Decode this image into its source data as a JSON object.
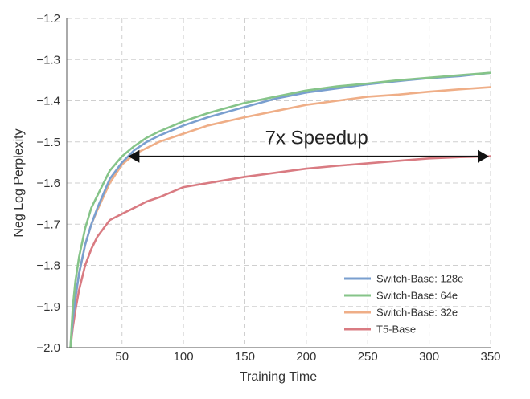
{
  "chart_data": {
    "type": "line",
    "title": "",
    "xlabel": "Training Time",
    "ylabel": "Neg Log Perplexity",
    "xlim": [
      5,
      350
    ],
    "ylim": [
      -2.0,
      -1.2
    ],
    "xticks": [
      50,
      100,
      150,
      200,
      250,
      300,
      350
    ],
    "yticks": [
      -2.0,
      -1.9,
      -1.8,
      -1.7,
      -1.6,
      -1.5,
      -1.4,
      -1.3,
      -1.2
    ],
    "ytick_labels": [
      "−2.0",
      "−1.9",
      "−1.8",
      "−1.7",
      "−1.6",
      "−1.5",
      "−1.4",
      "−1.3",
      "−1.2"
    ],
    "grid": true,
    "legend_position": "bottom-right",
    "series": [
      {
        "name": "Switch-Base: 128e",
        "color": "#7a9fcf",
        "x": [
          8,
          10,
          12,
          15,
          20,
          25,
          30,
          40,
          50,
          60,
          70,
          80,
          100,
          120,
          150,
          175,
          200,
          225,
          250,
          275,
          300,
          325,
          350
        ],
        "y": [
          -2.0,
          -1.93,
          -1.88,
          -1.82,
          -1.75,
          -1.7,
          -1.66,
          -1.59,
          -1.55,
          -1.52,
          -1.5,
          -1.485,
          -1.46,
          -1.44,
          -1.415,
          -1.395,
          -1.38,
          -1.37,
          -1.36,
          -1.352,
          -1.345,
          -1.34,
          -1.332
        ]
      },
      {
        "name": "Switch-Base: 64e",
        "color": "#86c489",
        "x": [
          8,
          10,
          12,
          15,
          20,
          25,
          30,
          40,
          50,
          60,
          70,
          80,
          100,
          120,
          150,
          175,
          200,
          225,
          250,
          275,
          300,
          325,
          350
        ],
        "y": [
          -2.0,
          -1.9,
          -1.84,
          -1.78,
          -1.71,
          -1.66,
          -1.63,
          -1.57,
          -1.535,
          -1.51,
          -1.49,
          -1.475,
          -1.45,
          -1.43,
          -1.405,
          -1.39,
          -1.375,
          -1.365,
          -1.358,
          -1.35,
          -1.344,
          -1.338,
          -1.332
        ]
      },
      {
        "name": "Switch-Base: 32e",
        "color": "#efae87",
        "x": [
          8,
          10,
          12,
          15,
          20,
          25,
          30,
          40,
          50,
          60,
          70,
          80,
          100,
          120,
          150,
          175,
          200,
          225,
          250,
          275,
          300,
          325,
          350
        ],
        "y": [
          -2.0,
          -1.93,
          -1.88,
          -1.82,
          -1.75,
          -1.7,
          -1.665,
          -1.6,
          -1.555,
          -1.53,
          -1.515,
          -1.5,
          -1.48,
          -1.46,
          -1.44,
          -1.425,
          -1.41,
          -1.4,
          -1.39,
          -1.385,
          -1.378,
          -1.372,
          -1.367
        ]
      },
      {
        "name": "T5-Base",
        "color": "#d97b82",
        "x": [
          8,
          10,
          12,
          15,
          20,
          25,
          30,
          40,
          50,
          60,
          70,
          80,
          100,
          120,
          150,
          175,
          200,
          225,
          250,
          275,
          300,
          325,
          350
        ],
        "y": [
          -2.0,
          -1.95,
          -1.91,
          -1.86,
          -1.8,
          -1.76,
          -1.73,
          -1.69,
          -1.675,
          -1.66,
          -1.645,
          -1.635,
          -1.61,
          -1.6,
          -1.585,
          -1.575,
          -1.565,
          -1.558,
          -1.552,
          -1.546,
          -1.54,
          -1.537,
          -1.535
        ]
      }
    ],
    "annotations": [
      {
        "type": "double-arrow",
        "text": "7x Speedup",
        "x_start": 55,
        "x_end": 350,
        "y": -1.535
      }
    ]
  }
}
